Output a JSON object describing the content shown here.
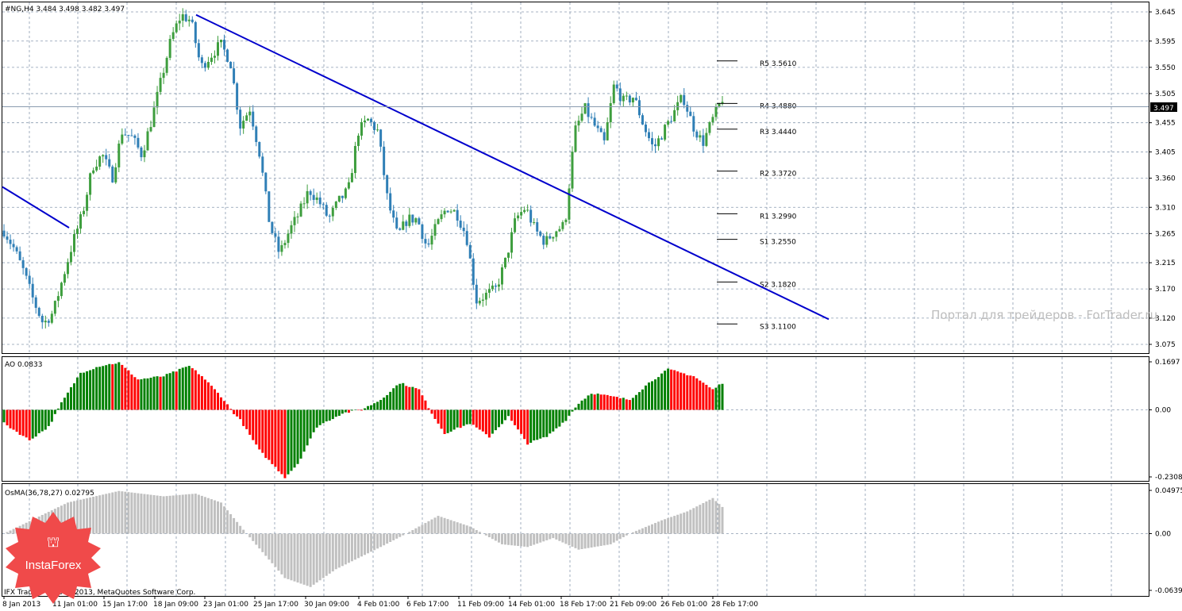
{
  "colors": {
    "background": "#ffffff",
    "grid": "#8a9bb0",
    "candle_up": "#3e9e3e",
    "candle_down": "#2f7fb6",
    "trendline": "#0000cc",
    "ao_up": "#008000",
    "ao_down": "#ff0000",
    "osma": "#c0c0c0",
    "watermark": "#bdbdbd",
    "logo": "#f04a4a"
  },
  "main": {
    "title": "#NG,H4  3.484 3.498 3.482 3.497",
    "price_axis": [
      "3.645",
      "3.595",
      "3.550",
      "3.505",
      "3.455",
      "3.405",
      "3.360",
      "3.310",
      "3.265",
      "3.215",
      "3.170",
      "3.120",
      "3.075"
    ],
    "current_price": "3.497",
    "pivots": [
      {
        "label": "R5 3.5610",
        "value": 3.561
      },
      {
        "label": "R4 3.4880",
        "value": 3.488
      },
      {
        "label": "R3 3.4440",
        "value": 3.444
      },
      {
        "label": "R2 3.3720",
        "value": 3.372
      },
      {
        "label": "R1 3.2990",
        "value": 3.299
      },
      {
        "label": "S1 3.2550",
        "value": 3.255
      },
      {
        "label": "S2 3.1820",
        "value": 3.182
      },
      {
        "label": "S3 3.1100",
        "value": 3.11
      }
    ],
    "watermark": "Портал для трейдеров - ForTrader.ru"
  },
  "ao": {
    "title": "AO 0.0833",
    "axis": [
      "0.1697",
      "0.00",
      "-0.2308"
    ]
  },
  "osma": {
    "title": "OsMA(36,78,27) 0.02795",
    "axis": [
      "0.04975",
      "0.00",
      "-0.0639"
    ]
  },
  "time_axis": [
    "8 Jan 2013",
    "11 Jan 01:00",
    "15 Jan 17:00",
    "18 Jan 09:00",
    "23 Jan 01:00",
    "25 Jan 17:00",
    "30 Jan 09:00",
    "4 Feb 01:00",
    "6 Feb 17:00",
    "11 Feb 09:00",
    "14 Feb 01:00",
    "18 Feb 17:00",
    "21 Feb 09:00",
    "26 Feb 01:00",
    "28 Feb 17:00"
  ],
  "copyright": "IFX Trader, © 2001-2013, MetaQuotes Software Corp.",
  "logo": {
    "text": "InstaForex",
    "icon": "instaforex-glyph-icon"
  },
  "chart_data": {
    "type": "candlestick",
    "symbol": "#NG",
    "timeframe": "H4",
    "ohlc_last": {
      "open": 3.484,
      "high": 3.498,
      "low": 3.482,
      "close": 3.497
    },
    "ylim": [
      3.075,
      3.66
    ],
    "close_path": [
      3.27,
      3.24,
      3.2,
      3.15,
      3.11,
      3.13,
      3.19,
      3.25,
      3.3,
      3.38,
      3.4,
      3.36,
      3.44,
      3.43,
      3.4,
      3.46,
      3.53,
      3.6,
      3.64,
      3.63,
      3.55,
      3.57,
      3.59,
      3.56,
      3.45,
      3.48,
      3.4,
      3.28,
      3.23,
      3.27,
      3.3,
      3.34,
      3.32,
      3.29,
      3.32,
      3.34,
      3.44,
      3.46,
      3.44,
      3.32,
      3.26,
      3.29,
      3.29,
      3.24,
      3.28,
      3.31,
      3.3,
      3.26,
      3.15,
      3.16,
      3.17,
      3.22,
      3.29,
      3.31,
      3.27,
      3.25,
      3.27,
      3.28,
      3.44,
      3.48,
      3.45,
      3.42,
      3.52,
      3.49,
      3.5,
      3.45,
      3.41,
      3.44,
      3.47,
      3.5,
      3.45,
      3.42,
      3.46,
      3.497
    ],
    "trendlines": [
      {
        "from": {
          "t": "8 Jan 2013",
          "price": 3.345
        },
        "to": {
          "t": "11 Jan 01:00",
          "price": 3.275
        }
      },
      {
        "from": {
          "t": "18 Jan 09:00",
          "price": 3.64
        },
        "to": {
          "t": "28 Feb 17:00",
          "price": 3.118
        }
      }
    ],
    "ao_range": [
      -0.2308,
      0.1697
    ],
    "osma_range": [
      -0.0639,
      0.04975
    ]
  }
}
